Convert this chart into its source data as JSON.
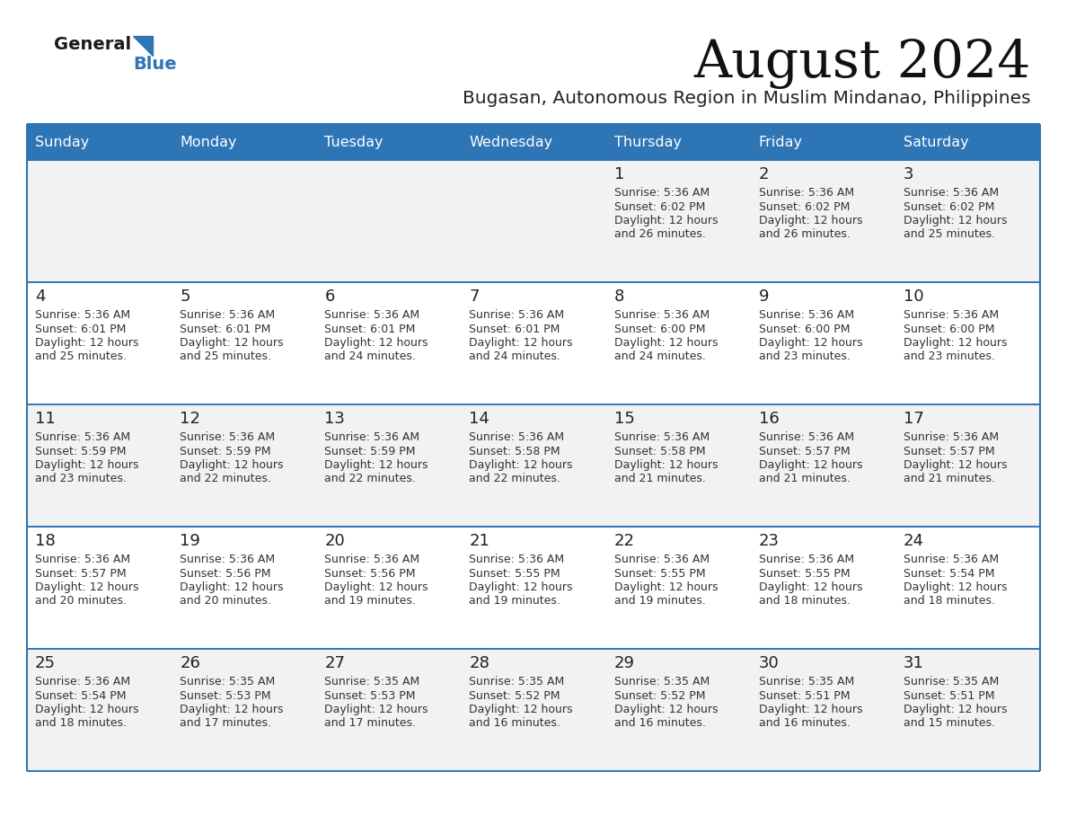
{
  "title": "August 2024",
  "subtitle": "Bugasan, Autonomous Region in Muslim Mindanao, Philippines",
  "header_bg": "#2E75B6",
  "header_text": "#FFFFFF",
  "day_names": [
    "Sunday",
    "Monday",
    "Tuesday",
    "Wednesday",
    "Thursday",
    "Friday",
    "Saturday"
  ],
  "row_bg_odd": "#F2F2F2",
  "row_bg_even": "#FFFFFF",
  "cell_border_color": "#A0A0A0",
  "row_top_border": "#2E75B6",
  "day_number_color": "#222222",
  "info_text_color": "#333333",
  "title_color": "#111111",
  "subtitle_color": "#222222",
  "logo_general_color": "#1A1A1A",
  "logo_blue_color": "#2E75B6",
  "calendar_data": [
    [
      {
        "day": "",
        "sunrise": "",
        "sunset": "",
        "daylight": ""
      },
      {
        "day": "",
        "sunrise": "",
        "sunset": "",
        "daylight": ""
      },
      {
        "day": "",
        "sunrise": "",
        "sunset": "",
        "daylight": ""
      },
      {
        "day": "",
        "sunrise": "",
        "sunset": "",
        "daylight": ""
      },
      {
        "day": "1",
        "sunrise": "5:36 AM",
        "sunset": "6:02 PM",
        "daylight": "12 hours and 26 minutes."
      },
      {
        "day": "2",
        "sunrise": "5:36 AM",
        "sunset": "6:02 PM",
        "daylight": "12 hours and 26 minutes."
      },
      {
        "day": "3",
        "sunrise": "5:36 AM",
        "sunset": "6:02 PM",
        "daylight": "12 hours and 25 minutes."
      }
    ],
    [
      {
        "day": "4",
        "sunrise": "5:36 AM",
        "sunset": "6:01 PM",
        "daylight": "12 hours and 25 minutes."
      },
      {
        "day": "5",
        "sunrise": "5:36 AM",
        "sunset": "6:01 PM",
        "daylight": "12 hours and 25 minutes."
      },
      {
        "day": "6",
        "sunrise": "5:36 AM",
        "sunset": "6:01 PM",
        "daylight": "12 hours and 24 minutes."
      },
      {
        "day": "7",
        "sunrise": "5:36 AM",
        "sunset": "6:01 PM",
        "daylight": "12 hours and 24 minutes."
      },
      {
        "day": "8",
        "sunrise": "5:36 AM",
        "sunset": "6:00 PM",
        "daylight": "12 hours and 24 minutes."
      },
      {
        "day": "9",
        "sunrise": "5:36 AM",
        "sunset": "6:00 PM",
        "daylight": "12 hours and 23 minutes."
      },
      {
        "day": "10",
        "sunrise": "5:36 AM",
        "sunset": "6:00 PM",
        "daylight": "12 hours and 23 minutes."
      }
    ],
    [
      {
        "day": "11",
        "sunrise": "5:36 AM",
        "sunset": "5:59 PM",
        "daylight": "12 hours and 23 minutes."
      },
      {
        "day": "12",
        "sunrise": "5:36 AM",
        "sunset": "5:59 PM",
        "daylight": "12 hours and 22 minutes."
      },
      {
        "day": "13",
        "sunrise": "5:36 AM",
        "sunset": "5:59 PM",
        "daylight": "12 hours and 22 minutes."
      },
      {
        "day": "14",
        "sunrise": "5:36 AM",
        "sunset": "5:58 PM",
        "daylight": "12 hours and 22 minutes."
      },
      {
        "day": "15",
        "sunrise": "5:36 AM",
        "sunset": "5:58 PM",
        "daylight": "12 hours and 21 minutes."
      },
      {
        "day": "16",
        "sunrise": "5:36 AM",
        "sunset": "5:57 PM",
        "daylight": "12 hours and 21 minutes."
      },
      {
        "day": "17",
        "sunrise": "5:36 AM",
        "sunset": "5:57 PM",
        "daylight": "12 hours and 21 minutes."
      }
    ],
    [
      {
        "day": "18",
        "sunrise": "5:36 AM",
        "sunset": "5:57 PM",
        "daylight": "12 hours and 20 minutes."
      },
      {
        "day": "19",
        "sunrise": "5:36 AM",
        "sunset": "5:56 PM",
        "daylight": "12 hours and 20 minutes."
      },
      {
        "day": "20",
        "sunrise": "5:36 AM",
        "sunset": "5:56 PM",
        "daylight": "12 hours and 19 minutes."
      },
      {
        "day": "21",
        "sunrise": "5:36 AM",
        "sunset": "5:55 PM",
        "daylight": "12 hours and 19 minutes."
      },
      {
        "day": "22",
        "sunrise": "5:36 AM",
        "sunset": "5:55 PM",
        "daylight": "12 hours and 19 minutes."
      },
      {
        "day": "23",
        "sunrise": "5:36 AM",
        "sunset": "5:55 PM",
        "daylight": "12 hours and 18 minutes."
      },
      {
        "day": "24",
        "sunrise": "5:36 AM",
        "sunset": "5:54 PM",
        "daylight": "12 hours and 18 minutes."
      }
    ],
    [
      {
        "day": "25",
        "sunrise": "5:36 AM",
        "sunset": "5:54 PM",
        "daylight": "12 hours and 18 minutes."
      },
      {
        "day": "26",
        "sunrise": "5:35 AM",
        "sunset": "5:53 PM",
        "daylight": "12 hours and 17 minutes."
      },
      {
        "day": "27",
        "sunrise": "5:35 AM",
        "sunset": "5:53 PM",
        "daylight": "12 hours and 17 minutes."
      },
      {
        "day": "28",
        "sunrise": "5:35 AM",
        "sunset": "5:52 PM",
        "daylight": "12 hours and 16 minutes."
      },
      {
        "day": "29",
        "sunrise": "5:35 AM",
        "sunset": "5:52 PM",
        "daylight": "12 hours and 16 minutes."
      },
      {
        "day": "30",
        "sunrise": "5:35 AM",
        "sunset": "5:51 PM",
        "daylight": "12 hours and 16 minutes."
      },
      {
        "day": "31",
        "sunrise": "5:35 AM",
        "sunset": "5:51 PM",
        "daylight": "12 hours and 15 minutes."
      }
    ]
  ]
}
